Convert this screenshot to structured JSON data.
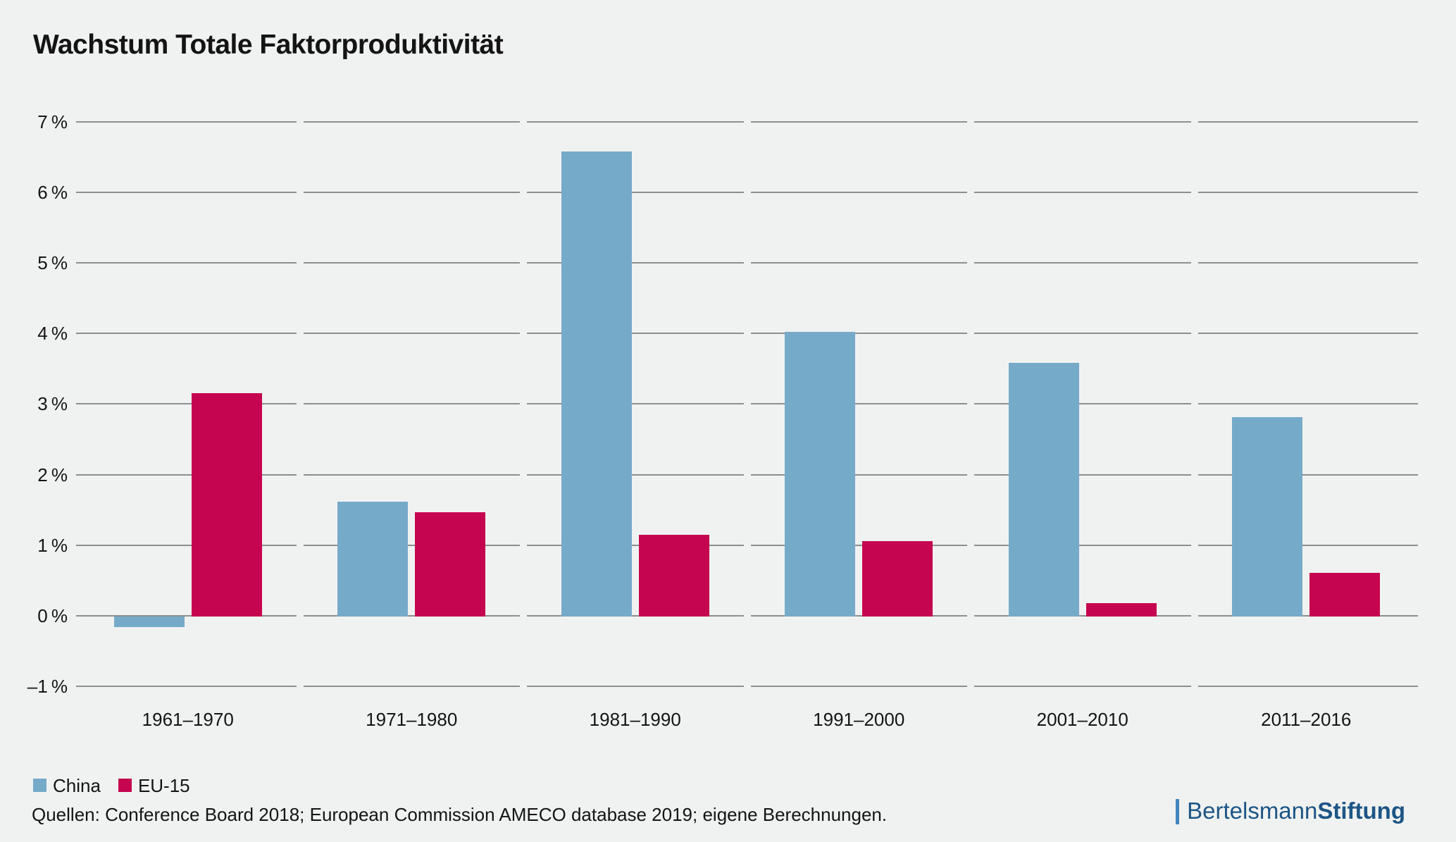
{
  "title": "Wachstum Totale Faktorproduktivität",
  "colors": {
    "background": "#f0f2f1",
    "gridline": "#8a8f8f",
    "china": "#76aac9",
    "eu15": "#c5054f",
    "text": "#141414",
    "logo_text": "#1d5586",
    "logo_bar": "#4384be"
  },
  "chart_data": {
    "type": "bar",
    "title": "Wachstum Totale Faktorproduktivität",
    "categories": [
      "1961–1970",
      "1971–1980",
      "1981–1990",
      "1991–2000",
      "2001–2010",
      "2011–2016"
    ],
    "series": [
      {
        "name": "China",
        "color": "#76aac9",
        "values": [
          -0.15,
          1.62,
          6.58,
          4.02,
          3.58,
          2.81
        ]
      },
      {
        "name": "EU-15",
        "color": "#c5054f",
        "values": [
          3.15,
          1.47,
          1.15,
          1.06,
          0.18,
          0.61
        ]
      }
    ],
    "unit": "%",
    "ylim": [
      -1,
      7
    ],
    "y_ticks": [
      {
        "label": "7 %",
        "value": 7
      },
      {
        "label": "6 %",
        "value": 6
      },
      {
        "label": "5 %",
        "value": 5
      },
      {
        "label": "4 %",
        "value": 4
      },
      {
        "label": "3 %",
        "value": 3
      },
      {
        "label": "2 %",
        "value": 2
      },
      {
        "label": "1 %",
        "value": 1
      },
      {
        "label": "0 %",
        "value": 0
      },
      {
        "label": "–1 %",
        "value": -1
      }
    ],
    "grid": true,
    "gridline_style": "segmented-per-category",
    "legend_position": "bottom-left"
  },
  "source": "Quellen: Conference Board 2018; European Commission AMECO database 2019; eigene Berechnungen.",
  "logo": {
    "name_regular": "Bertelsmann",
    "name_bold": "Stiftung"
  }
}
